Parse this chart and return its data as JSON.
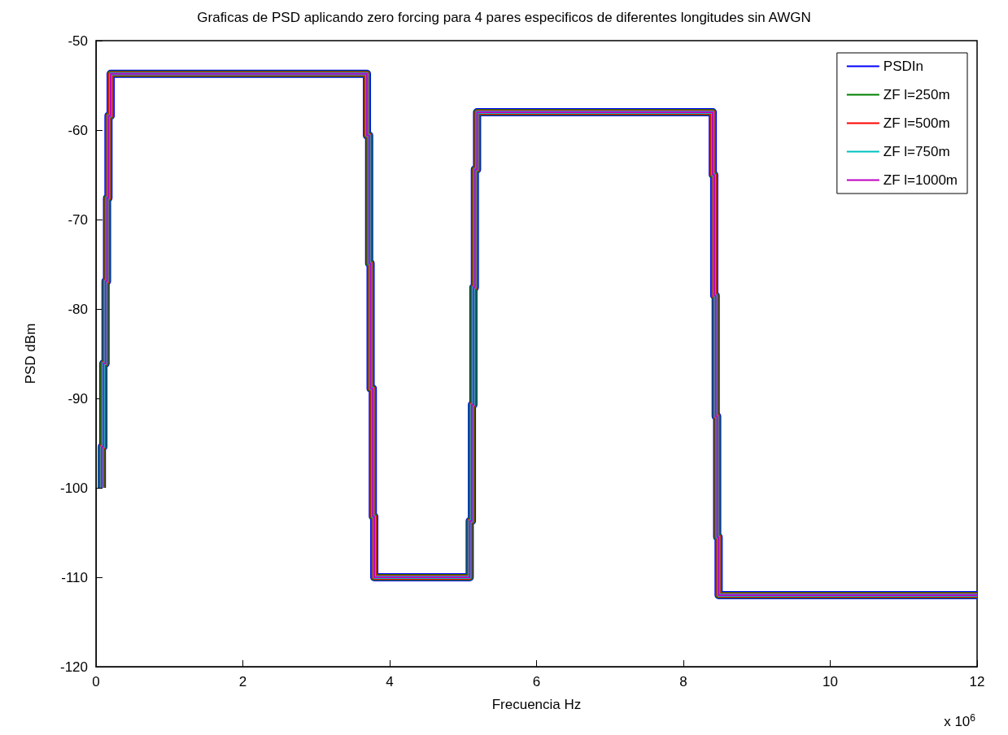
{
  "chart_data": {
    "type": "line",
    "title": "Graficas de PSD aplicando zero forcing para 4 pares especificos de diferentes longitudes sin AWGN",
    "xlabel": "Frecuencia Hz",
    "ylabel": "PSD dBm",
    "annotations": [
      "x 10$^{6}$"
    ],
    "x": [
      0.08,
      0.08,
      0.1,
      0.1,
      0.13,
      0.13,
      0.15,
      0.15,
      0.17,
      0.17,
      0.2,
      0.2,
      3.69,
      3.69,
      3.72,
      3.72,
      3.74,
      3.74,
      3.77,
      3.77,
      3.79,
      3.79,
      5.09,
      5.09,
      5.12,
      5.12,
      5.14,
      5.14,
      5.16,
      5.16,
      5.19,
      5.19,
      8.4,
      8.4,
      8.42,
      8.42,
      8.44,
      8.44,
      8.46,
      8.46,
      8.48,
      8.48,
      12
    ],
    "series": [
      {
        "name": "PSDIn",
        "color": "#0000ff",
        "values": [
          -100,
          -95.4,
          -95.4,
          -86.1,
          -86.1,
          -76.9,
          -76.9,
          -67.6,
          -67.6,
          -58.4,
          -58.4,
          -53.7,
          -53.7,
          -60.6,
          -60.6,
          -74.9,
          -74.9,
          -88.9,
          -88.9,
          -103.2,
          -103.2,
          -110,
          -110,
          -103.7,
          -103.7,
          -90.7,
          -90.7,
          -77.6,
          -77.6,
          -64.4,
          -64.4,
          -58,
          -58,
          -65,
          -65,
          -78.5,
          -78.5,
          -92,
          -92,
          -105.5,
          -105.5,
          -112,
          -112
        ]
      },
      {
        "name": "ZF l=250m",
        "color": "#008000",
        "values": [
          -100,
          -95.4,
          -95.4,
          -86.1,
          -86.1,
          -76.9,
          -76.9,
          -67.6,
          -67.6,
          -58.4,
          -58.4,
          -53.7,
          -53.7,
          -60.6,
          -60.6,
          -74.9,
          -74.9,
          -88.9,
          -88.9,
          -103.2,
          -103.2,
          -110,
          -110,
          -103.7,
          -103.7,
          -90.7,
          -90.7,
          -77.6,
          -77.6,
          -64.4,
          -64.4,
          -58,
          -58,
          -65,
          -65,
          -78.5,
          -78.5,
          -92,
          -92,
          -105.5,
          -105.5,
          -112,
          -112
        ]
      },
      {
        "name": "ZF l=500m",
        "color": "#ff0000",
        "values": [
          -100,
          -95.4,
          -95.4,
          -86.1,
          -86.1,
          -76.9,
          -76.9,
          -67.6,
          -67.6,
          -58.4,
          -58.4,
          -53.7,
          -53.7,
          -60.6,
          -60.6,
          -74.9,
          -74.9,
          -88.9,
          -88.9,
          -103.2,
          -103.2,
          -110,
          -110,
          -103.7,
          -103.7,
          -90.7,
          -90.7,
          -77.6,
          -77.6,
          -64.4,
          -64.4,
          -58,
          -58,
          -65,
          -65,
          -78.5,
          -78.5,
          -92,
          -92,
          -105.5,
          -105.5,
          -112,
          -112
        ]
      },
      {
        "name": "ZF l=750m",
        "color": "#00bfbf",
        "values": [
          -100,
          -95.4,
          -95.4,
          -86.1,
          -86.1,
          -76.9,
          -76.9,
          -67.6,
          -67.6,
          -58.4,
          -58.4,
          -53.7,
          -53.7,
          -60.6,
          -60.6,
          -74.9,
          -74.9,
          -88.9,
          -88.9,
          -103.2,
          -103.2,
          -110,
          -110,
          -103.7,
          -103.7,
          -90.7,
          -90.7,
          -77.6,
          -77.6,
          -64.4,
          -64.4,
          -58,
          -58,
          -65,
          -65,
          -78.5,
          -78.5,
          -92,
          -92,
          -105.5,
          -105.5,
          -112,
          -112
        ]
      },
      {
        "name": "ZF l=1000m",
        "color": "#bf00bf",
        "values": [
          -100,
          -95.4,
          -95.4,
          -86.1,
          -86.1,
          -76.9,
          -76.9,
          -67.6,
          -67.6,
          -58.4,
          -58.4,
          -53.7,
          -53.7,
          -60.6,
          -60.6,
          -74.9,
          -74.9,
          -88.9,
          -88.9,
          -103.2,
          -103.2,
          -110,
          -110,
          -103.7,
          -103.7,
          -90.7,
          -90.7,
          -77.6,
          -77.6,
          -64.4,
          -64.4,
          -58,
          -58,
          -65,
          -65,
          -78.5,
          -78.5,
          -92,
          -92,
          -105.5,
          -105.5,
          -112,
          -112
        ]
      }
    ],
    "xlim": [
      0,
      12
    ],
    "xticks": [
      0,
      2,
      4,
      6,
      8,
      10,
      12
    ],
    "ylim": [
      -120,
      -50
    ],
    "yticks": [
      -120,
      -110,
      -100,
      -90,
      -80,
      -70,
      -60,
      -50
    ],
    "legend": "top right",
    "marker": "none",
    "line_style": "solid"
  }
}
